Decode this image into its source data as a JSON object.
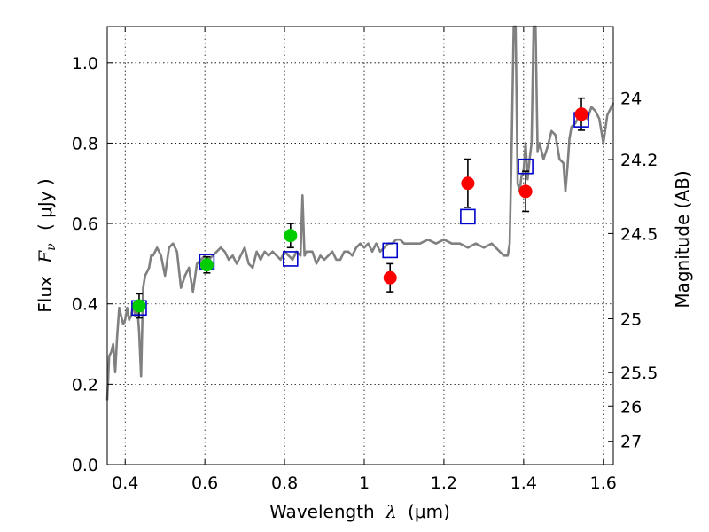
{
  "chart_data": {
    "type": "scatter",
    "xlabel": "Wavelength",
    "xlabel_math": "λ",
    "xlabel_unit": "(μm)",
    "ylabel": "Flux",
    "ylabel_math": "F",
    "ylabel_math_sub": "ν",
    "ylabel_unit": "( μJy )",
    "y2label": "Magnitude (AB)",
    "xlim": [
      0.355,
      1.625
    ],
    "ylim": [
      0.0,
      1.09
    ],
    "grid": true,
    "x_ticks": [
      0.4,
      0.6,
      0.8,
      1.0,
      1.2,
      1.4,
      1.6
    ],
    "x_tick_labels": [
      "0.4",
      "0.6",
      "0.8",
      "1",
      "1.2",
      "1.4",
      "1.6"
    ],
    "y_ticks": [
      0.0,
      0.2,
      0.4,
      0.6,
      0.8,
      1.0
    ],
    "y_tick_labels": [
      "0.0",
      "0.2",
      "0.4",
      "0.6",
      "0.8",
      "1.0"
    ],
    "y2_ticks": [
      {
        "label": "24",
        "flux": 0.912
      },
      {
        "label": "24.2",
        "flux": 0.759
      },
      {
        "label": "24.5",
        "flux": 0.575
      },
      {
        "label": "25",
        "flux": 0.363
      },
      {
        "label": "25.5",
        "flux": 0.229
      },
      {
        "label": "26",
        "flux": 0.145
      },
      {
        "label": "27",
        "flux": 0.058
      }
    ],
    "series": [
      {
        "kind": "spectrum",
        "color": "#808080",
        "x": [
          0.355,
          0.36,
          0.365,
          0.37,
          0.375,
          0.38,
          0.385,
          0.39,
          0.395,
          0.4,
          0.405,
          0.41,
          0.415,
          0.42,
          0.425,
          0.43,
          0.435,
          0.44,
          0.445,
          0.45,
          0.455,
          0.46,
          0.465,
          0.47,
          0.48,
          0.49,
          0.5,
          0.51,
          0.52,
          0.53,
          0.54,
          0.55,
          0.56,
          0.57,
          0.58,
          0.59,
          0.6,
          0.61,
          0.62,
          0.63,
          0.64,
          0.65,
          0.66,
          0.67,
          0.68,
          0.69,
          0.7,
          0.71,
          0.72,
          0.73,
          0.74,
          0.75,
          0.76,
          0.77,
          0.78,
          0.79,
          0.8,
          0.81,
          0.82,
          0.83,
          0.84,
          0.845,
          0.85,
          0.855,
          0.86,
          0.87,
          0.88,
          0.89,
          0.9,
          0.91,
          0.92,
          0.93,
          0.94,
          0.95,
          0.96,
          0.97,
          0.98,
          0.99,
          1.0,
          1.01,
          1.02,
          1.03,
          1.04,
          1.05,
          1.06,
          1.07,
          1.08,
          1.09,
          1.1,
          1.12,
          1.14,
          1.16,
          1.18,
          1.2,
          1.22,
          1.24,
          1.26,
          1.28,
          1.3,
          1.32,
          1.33,
          1.34,
          1.35,
          1.355,
          1.36,
          1.365,
          1.37,
          1.375,
          1.38,
          1.385,
          1.39,
          1.395,
          1.4,
          1.405,
          1.41,
          1.415,
          1.42,
          1.425,
          1.43,
          1.435,
          1.44,
          1.45,
          1.46,
          1.47,
          1.48,
          1.49,
          1.5,
          1.505,
          1.51,
          1.515,
          1.52,
          1.53,
          1.54,
          1.55,
          1.56,
          1.57,
          1.58,
          1.59,
          1.6,
          1.61,
          1.62,
          1.625
        ],
        "y": [
          0.16,
          0.27,
          0.28,
          0.3,
          0.23,
          0.32,
          0.39,
          0.37,
          0.35,
          0.36,
          0.39,
          0.36,
          0.37,
          0.4,
          0.37,
          0.4,
          0.33,
          0.22,
          0.44,
          0.47,
          0.48,
          0.49,
          0.52,
          0.52,
          0.54,
          0.52,
          0.47,
          0.54,
          0.55,
          0.53,
          0.44,
          0.47,
          0.49,
          0.43,
          0.5,
          0.51,
          0.52,
          0.51,
          0.52,
          0.53,
          0.54,
          0.53,
          0.51,
          0.52,
          0.5,
          0.52,
          0.54,
          0.5,
          0.49,
          0.53,
          0.51,
          0.53,
          0.52,
          0.53,
          0.52,
          0.51,
          0.53,
          0.52,
          0.51,
          0.53,
          0.52,
          0.67,
          0.52,
          0.53,
          0.53,
          0.53,
          0.5,
          0.52,
          0.51,
          0.52,
          0.53,
          0.51,
          0.51,
          0.53,
          0.53,
          0.52,
          0.54,
          0.55,
          0.54,
          0.55,
          0.53,
          0.55,
          0.53,
          0.54,
          0.55,
          0.55,
          0.56,
          0.56,
          0.55,
          0.55,
          0.55,
          0.56,
          0.55,
          0.56,
          0.55,
          0.55,
          0.54,
          0.55,
          0.54,
          0.55,
          0.54,
          0.53,
          0.52,
          0.52,
          0.52,
          0.55,
          0.8,
          1.09,
          1.09,
          0.7,
          0.68,
          0.72,
          0.73,
          0.8,
          0.71,
          0.76,
          0.8,
          1.09,
          1.09,
          0.78,
          0.8,
          0.76,
          0.79,
          0.83,
          0.82,
          0.76,
          0.75,
          0.68,
          0.74,
          0.81,
          0.84,
          0.85,
          0.87,
          0.87,
          0.86,
          0.89,
          0.88,
          0.86,
          0.8,
          0.87,
          0.89,
          0.9
        ]
      },
      {
        "kind": "observed",
        "color": "#00cc00",
        "marker": "circle",
        "x": [
          0.435,
          0.605,
          0.815
        ],
        "y": [
          0.395,
          0.497,
          0.57
        ],
        "yerr": [
          0.03,
          0.02,
          0.03
        ]
      },
      {
        "kind": "observed",
        "color": "#ff0000",
        "marker": "circle",
        "x": [
          1.065,
          1.26,
          1.405,
          1.545
        ],
        "y": [
          0.465,
          0.7,
          0.68,
          0.872
        ],
        "yerr": [
          0.035,
          0.06,
          0.05,
          0.04
        ]
      },
      {
        "kind": "model",
        "color": "#0000cc",
        "marker": "square",
        "x": [
          0.435,
          0.605,
          0.815,
          1.065,
          1.26,
          1.405,
          1.545
        ],
        "y": [
          0.39,
          0.505,
          0.512,
          0.533,
          0.617,
          0.742,
          0.858
        ]
      }
    ]
  }
}
